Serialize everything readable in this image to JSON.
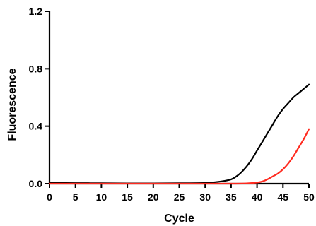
{
  "chart_data": {
    "type": "line",
    "title": "",
    "xlabel": "Cycle",
    "ylabel": "Fluorescence",
    "xlim": [
      0,
      50
    ],
    "ylim": [
      0,
      1.2
    ],
    "x_ticks": [
      "0",
      "5",
      "10",
      "15",
      "20",
      "25",
      "30",
      "35",
      "40",
      "45",
      "50"
    ],
    "y_ticks": [
      "0.0",
      "0.4",
      "0.8",
      "1.2"
    ],
    "grid": false,
    "legend": "none",
    "series": [
      {
        "color": "#000000",
        "x": [
          0,
          5,
          10,
          15,
          20,
          25,
          30,
          33,
          35,
          36,
          37,
          38,
          39,
          40,
          41,
          42,
          43,
          44,
          45,
          46,
          47,
          48,
          49,
          50
        ],
        "y": [
          0.005,
          0.004,
          0.003,
          0.002,
          0.002,
          0.003,
          0.005,
          0.015,
          0.03,
          0.05,
          0.08,
          0.12,
          0.17,
          0.23,
          0.29,
          0.35,
          0.41,
          0.47,
          0.52,
          0.56,
          0.6,
          0.63,
          0.66,
          0.69
        ]
      },
      {
        "color": "#ff2a1f",
        "x": [
          0,
          5,
          10,
          15,
          20,
          25,
          30,
          35,
          38,
          40,
          41,
          42,
          43,
          44,
          45,
          46,
          47,
          48,
          49,
          50
        ],
        "y": [
          0.0,
          0.0,
          0.0,
          0.0,
          0.0,
          0.0,
          0.0,
          0.0,
          0.002,
          0.008,
          0.015,
          0.03,
          0.05,
          0.07,
          0.1,
          0.14,
          0.19,
          0.25,
          0.31,
          0.38
        ]
      }
    ]
  }
}
